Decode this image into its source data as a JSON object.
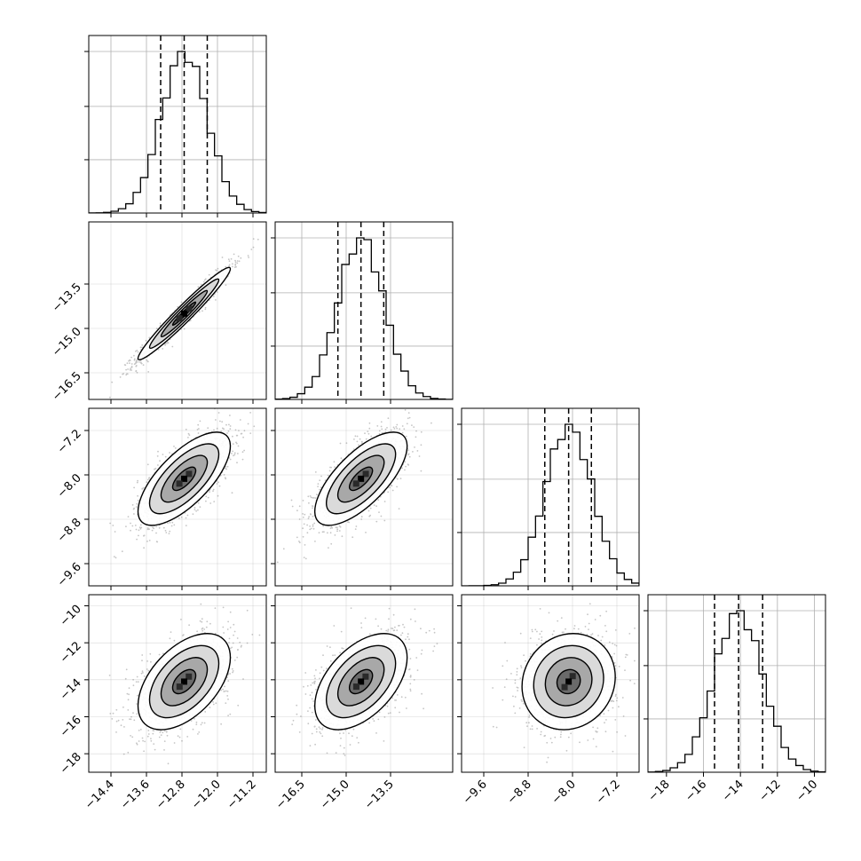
{
  "chart_data": {
    "type": "corner",
    "grid": true,
    "parameters": [
      {
        "range": [
          -14.9,
          -10.9
        ],
        "ticks": [
          "−14.4",
          "−13.6",
          "−12.8",
          "−12.0",
          "−11.2"
        ],
        "tick_values": [
          -14.4,
          -13.6,
          -12.8,
          -12.0,
          -11.2
        ],
        "mean": -12.75,
        "sd": 0.52,
        "quantiles": [
          -13.28,
          -12.75,
          -12.23
        ],
        "hist_peak": 1.0,
        "hist_ticks": [
          0.33,
          0.66,
          1.0
        ]
      },
      {
        "range": [
          -17.4,
          -11.4
        ],
        "ticks": [
          "−16.5",
          "−15.0",
          "−13.5"
        ],
        "tick_values": [
          -16.5,
          -15.0,
          -13.5
        ],
        "mean": -14.5,
        "sd": 0.78,
        "quantiles": [
          -15.28,
          -14.5,
          -13.73
        ],
        "hist_peak": 1.0,
        "hist_ticks": [
          0.33,
          0.66,
          1.0
        ]
      },
      {
        "range": [
          -10.0,
          -6.8
        ],
        "ticks": [
          "−9.6",
          "−8.8",
          "−8.0",
          "−7.2"
        ],
        "tick_values": [
          -9.6,
          -8.8,
          -8.0,
          -7.2
        ],
        "mean": -8.07,
        "sd": 0.42,
        "quantiles": [
          -8.5,
          -8.07,
          -7.66
        ],
        "hist_peak": 1.0,
        "hist_ticks": [
          0.33,
          0.66,
          1.0
        ]
      },
      {
        "range": [
          -19.0,
          -9.4
        ],
        "ticks": [
          "−18",
          "−16",
          "−14",
          "−12",
          "−10"
        ],
        "tick_values": [
          -18,
          -16,
          -14,
          -12,
          -10
        ],
        "mean": -14.1,
        "sd": 1.3,
        "quantiles": [
          -15.4,
          -14.1,
          -12.8
        ],
        "hist_peak": 1.0,
        "hist_ticks": [
          0.33,
          0.66,
          1.0
        ]
      }
    ],
    "correlations": [
      [
        1.0,
        0.97,
        0.7,
        0.5
      ],
      [
        0.97,
        1.0,
        0.7,
        0.5
      ],
      [
        0.7,
        0.7,
        1.0,
        0.1
      ],
      [
        0.5,
        0.5,
        0.1,
        1.0
      ]
    ],
    "contour_levels_sigma": [
      0.5,
      1.0,
      1.5,
      2.0
    ],
    "colors": {
      "line": "#000000",
      "grid": "#b0b0b0",
      "points": "#808080",
      "fill_dark": "#000000",
      "fill_light": "#ffffff"
    }
  }
}
